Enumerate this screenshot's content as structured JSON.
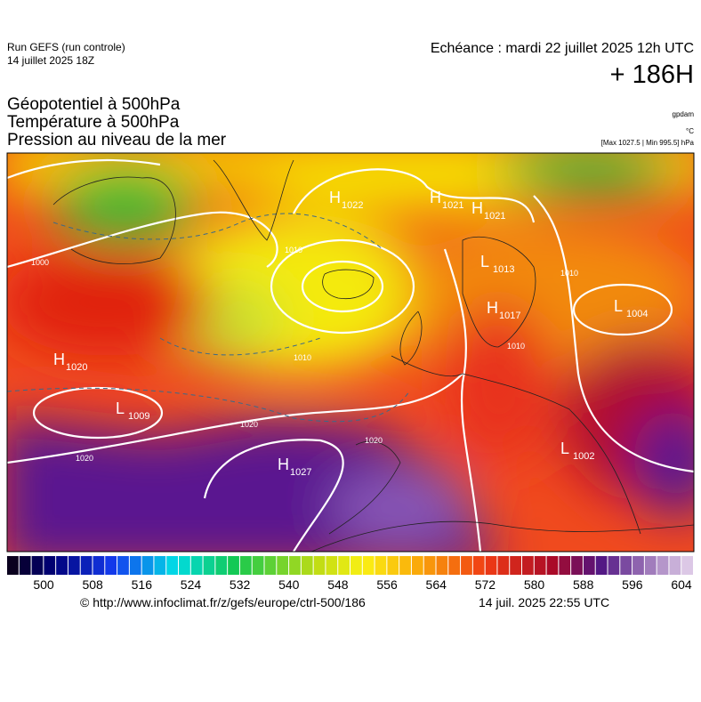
{
  "header": {
    "run": "Run GEFS (run controle)",
    "run_date": "14 juillet 2025 18Z",
    "valid": "Echéance : mardi 22 juillet 2025 12h UTC",
    "lead": "+ 186H"
  },
  "titles": [
    "Géopotentiel à 500hPa",
    "Température à 500hPa",
    "Pression au niveau de la mer"
  ],
  "units": {
    "geopotential": "gpdam",
    "temperature": "°C",
    "pressure": "[Max 1027.5 | Min 995.5] hPa"
  },
  "map": {
    "centers": [
      {
        "letter": "H",
        "value": "1022"
      },
      {
        "letter": "H",
        "value": "1021"
      },
      {
        "letter": "H",
        "value": "1021"
      },
      {
        "letter": "L",
        "value": "1013"
      },
      {
        "letter": "H",
        "value": "1017"
      },
      {
        "letter": "L",
        "value": "1004"
      },
      {
        "letter": "L",
        "value": "1009"
      },
      {
        "letter": "H",
        "value": "1020"
      },
      {
        "letter": "H",
        "value": "1027"
      },
      {
        "letter": "L",
        "value": "1002"
      }
    ],
    "isobar_labels": [
      "1010",
      "1010",
      "1020",
      "1020",
      "1020",
      "1000",
      "1010",
      "1010"
    ]
  },
  "colorbar": {
    "ticks": [
      500,
      508,
      516,
      524,
      532,
      540,
      548,
      556,
      564,
      572,
      580,
      588,
      596,
      604
    ]
  },
  "footer": {
    "source": "© http://www.infoclimat.fr/z/gefs/europe/ctrl-500/186",
    "generated": "14 juil. 2025 22:55 UTC"
  }
}
